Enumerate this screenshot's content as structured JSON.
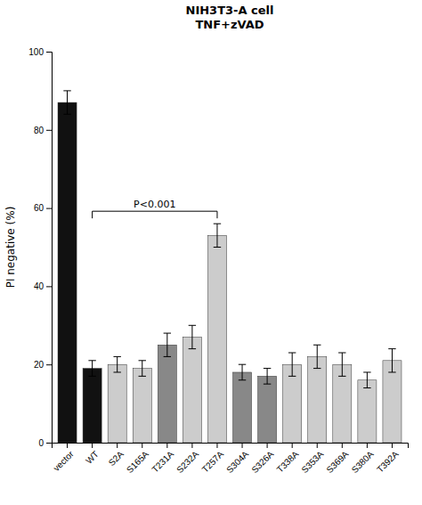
{
  "chart_data": {
    "type": "bar",
    "title": "NIH3T3-A cell\nTNF+zVAD",
    "y_label": "PI negative (%)",
    "categories": [
      "vector",
      "WT",
      "S2A",
      "S165A",
      "T231A",
      "S232A",
      "T257A",
      "S304A",
      "S326A",
      "T338A",
      "S353A",
      "S369A",
      "S380A",
      "T392A"
    ],
    "values": [
      87,
      19,
      20,
      19,
      25,
      27,
      53,
      18,
      17,
      20,
      22,
      20,
      16,
      21
    ],
    "errors": [
      3,
      2,
      2,
      2,
      3,
      3,
      3,
      2,
      2,
      3,
      3,
      3,
      2,
      3
    ],
    "colors": [
      "#111111",
      "#111111",
      "#cccccc",
      "#cccccc",
      "#888888",
      "#cccccc",
      "#cccccc",
      "#888888",
      "#888888",
      "#cccccc",
      "#cccccc",
      "#cccccc",
      "#cccccc",
      "#cccccc"
    ],
    "ylim": [
      0,
      100
    ],
    "yticks": [
      0,
      20,
      40,
      60,
      80,
      100
    ],
    "annotations": [
      {
        "text": "P<0.001",
        "between": [
          "WT",
          "T257A"
        ]
      }
    ]
  }
}
